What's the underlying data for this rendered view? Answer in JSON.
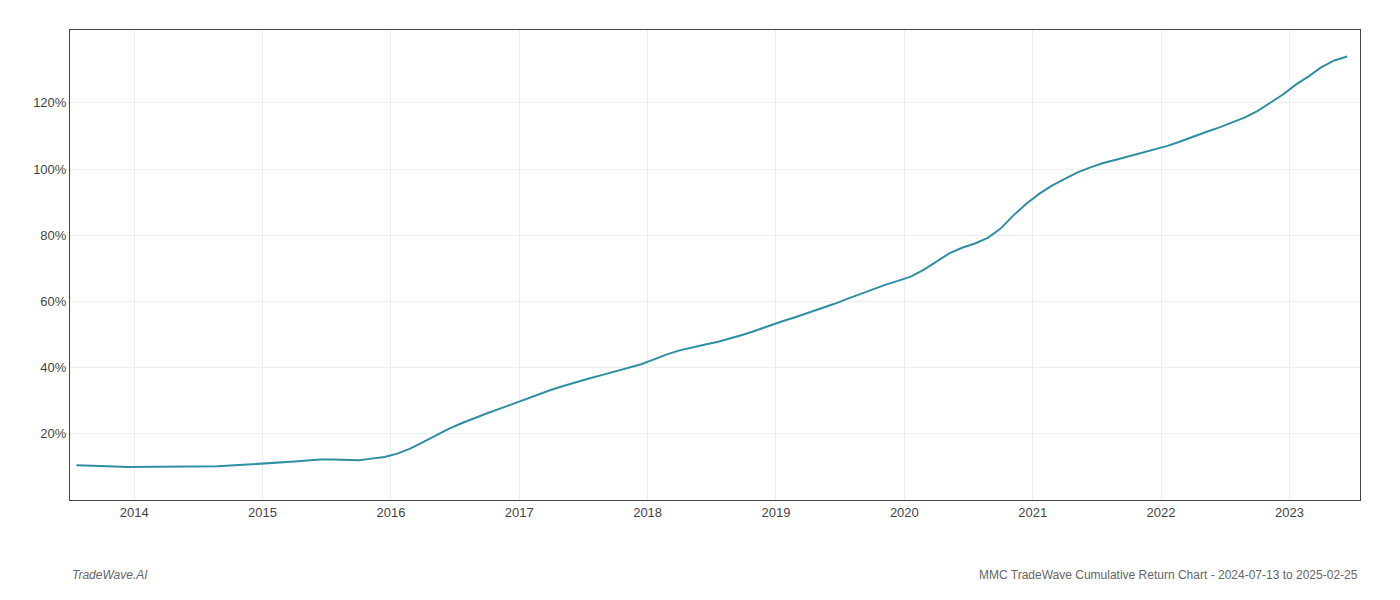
{
  "chart_data": {
    "type": "line",
    "title": "MMC TradeWave Cumulative Return Chart - 2024-07-13 to 2025-02-25",
    "annotations": [
      {
        "text": "TradeWave.AI"
      }
    ],
    "color": "#2e8fa3",
    "x": [
      2013.55,
      2013.65,
      2013.75,
      2013.85,
      2013.95,
      2014.05,
      2014.15,
      2014.25,
      2014.35,
      2014.45,
      2014.55,
      2014.65,
      2014.75,
      2014.85,
      2014.95,
      2015.05,
      2015.15,
      2015.25,
      2015.35,
      2015.45,
      2015.55,
      2015.65,
      2015.75,
      2015.85,
      2015.95,
      2016.05,
      2016.15,
      2016.25,
      2016.35,
      2016.45,
      2016.55,
      2016.65,
      2016.75,
      2016.85,
      2016.95,
      2017.05,
      2017.15,
      2017.25,
      2017.35,
      2017.45,
      2017.55,
      2017.65,
      2017.75,
      2017.85,
      2017.95,
      2018.05,
      2018.15,
      2018.25,
      2018.35,
      2018.45,
      2018.55,
      2018.65,
      2018.75,
      2018.85,
      2018.95,
      2019.05,
      2019.15,
      2019.25,
      2019.35,
      2019.45,
      2019.55,
      2019.65,
      2019.75,
      2019.85,
      2019.95,
      2020.05,
      2020.15,
      2020.25,
      2020.35,
      2020.45,
      2020.55,
      2020.65,
      2020.75,
      2020.85,
      2020.95,
      2021.05,
      2021.15,
      2021.25,
      2021.35,
      2021.45,
      2021.55,
      2021.65,
      2021.75,
      2021.85,
      2021.95,
      2022.05,
      2022.15,
      2022.25,
      2022.35,
      2022.45,
      2022.55,
      2022.65,
      2022.75,
      2022.85,
      2022.95,
      2023.05,
      2023.15,
      2023.25,
      2023.35,
      2023.45
    ],
    "values": [
      0.105,
      0.103,
      0.102,
      0.101,
      0.1,
      0.1,
      0.1,
      0.1,
      0.1,
      0.1,
      0.1,
      0.102,
      0.104,
      0.106,
      0.108,
      0.11,
      0.113,
      0.116,
      0.119,
      0.122,
      0.122,
      0.12,
      0.12,
      0.125,
      0.13,
      0.14,
      0.155,
      0.175,
      0.195,
      0.215,
      0.232,
      0.248,
      0.262,
      0.276,
      0.29,
      0.305,
      0.32,
      0.333,
      0.345,
      0.357,
      0.368,
      0.378,
      0.388,
      0.398,
      0.41,
      0.425,
      0.44,
      0.452,
      0.462,
      0.47,
      0.478,
      0.488,
      0.5,
      0.513,
      0.527,
      0.54,
      0.552,
      0.565,
      0.578,
      0.592,
      0.607,
      0.622,
      0.637,
      0.65,
      0.662,
      0.675,
      0.695,
      0.72,
      0.745,
      0.762,
      0.775,
      0.792,
      0.82,
      0.86,
      0.895,
      0.925,
      0.95,
      0.97,
      0.99,
      1.005,
      1.018,
      1.028,
      1.038,
      1.048,
      1.058,
      1.07,
      1.083,
      1.098,
      1.112,
      1.125,
      1.14,
      1.155,
      1.175,
      1.2,
      1.225,
      1.255,
      1.28,
      1.308,
      1.328,
      1.34
    ],
    "xlim": [
      2013.5,
      2023.55
    ],
    "ylim": [
      0.0,
      1.42
    ],
    "xticks": [
      2014,
      2015,
      2016,
      2017,
      2018,
      2019,
      2020,
      2021,
      2022,
      2023
    ],
    "yticks": [
      {
        "value": 0.2,
        "label": "20%"
      },
      {
        "value": 0.4,
        "label": "40%"
      },
      {
        "value": 0.6,
        "label": "60%"
      },
      {
        "value": 0.8,
        "label": "80%"
      },
      {
        "value": 1.0,
        "label": "100%"
      },
      {
        "value": 1.2,
        "label": "120%"
      }
    ],
    "grid": true
  }
}
